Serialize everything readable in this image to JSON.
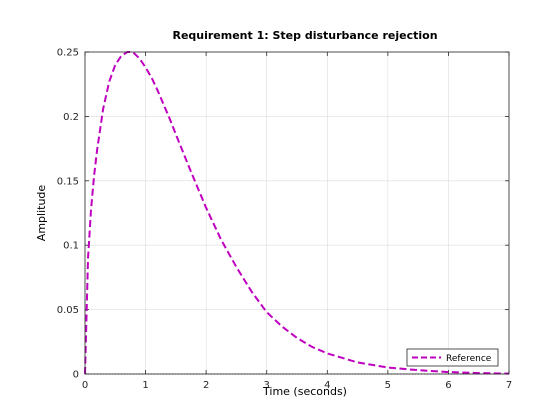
{
  "chart_data": {
    "type": "line",
    "title": "Requirement 1: Step disturbance rejection",
    "xlabel": "Time (seconds)",
    "ylabel": "Amplitude",
    "xlim": [
      0,
      7
    ],
    "ylim": [
      0,
      0.25
    ],
    "x_ticks": [
      "0",
      "1",
      "2",
      "3",
      "4",
      "5",
      "6",
      "7"
    ],
    "y_ticks": [
      "0",
      "0.05",
      "0.1",
      "0.15",
      "0.2",
      "0.25"
    ],
    "grid": true,
    "legend_position": "bottom-right",
    "series": [
      {
        "name": "Reference",
        "color": "#bf00bf",
        "style": "dashed",
        "x": [
          0,
          0.05,
          0.1,
          0.15,
          0.2,
          0.3,
          0.4,
          0.5,
          0.6,
          0.7,
          0.75,
          0.8,
          0.9,
          1.0,
          1.1,
          1.2,
          1.3,
          1.4,
          1.5,
          1.75,
          2.0,
          2.25,
          2.5,
          2.75,
          3.0,
          3.25,
          3.5,
          3.75,
          4.0,
          4.5,
          5.0,
          5.5,
          6.0,
          6.5,
          7.0
        ],
        "y": [
          0,
          0.09,
          0.128,
          0.154,
          0.174,
          0.206,
          0.227,
          0.24,
          0.247,
          0.25,
          0.25,
          0.2495,
          0.245,
          0.238,
          0.23,
          0.22,
          0.209,
          0.198,
          0.186,
          0.157,
          0.129,
          0.104,
          0.083,
          0.064,
          0.048,
          0.037,
          0.028,
          0.021,
          0.016,
          0.009,
          0.005,
          0.003,
          0.0015,
          0.0007,
          0.0003
        ]
      }
    ],
    "baseline": {
      "y": 0,
      "color": "#000000",
      "style": "dotted"
    }
  }
}
